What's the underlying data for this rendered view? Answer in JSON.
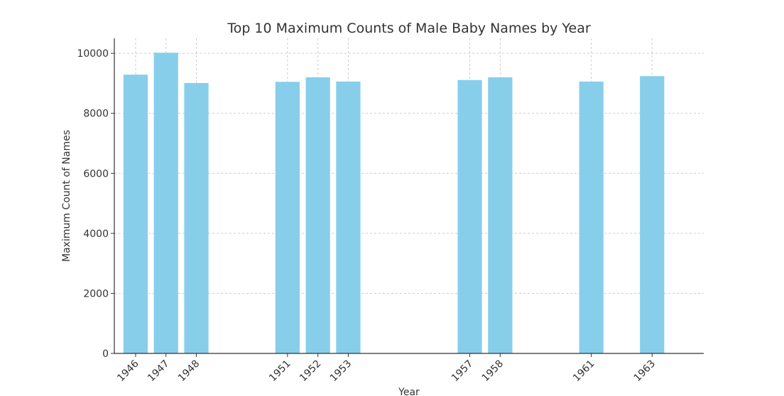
{
  "chart_data": {
    "type": "bar",
    "title": "Top 10 Maximum Counts of Male Baby Names by Year",
    "xlabel": "Year",
    "ylabel": "Maximum Count of Names",
    "x": [
      1946,
      1947,
      1948,
      1951,
      1952,
      1953,
      1957,
      1958,
      1961,
      1963
    ],
    "categories": [
      "1946",
      "1947",
      "1948",
      "1951",
      "1952",
      "1953",
      "1957",
      "1958",
      "1961",
      "1963"
    ],
    "values": [
      9290,
      10020,
      9010,
      9050,
      9200,
      9060,
      9110,
      9200,
      9060,
      9240
    ],
    "xlim": [
      1945.3,
      1964.7
    ],
    "ylim": [
      0,
      10500
    ],
    "yticks": [
      0,
      2000,
      4000,
      6000,
      8000,
      10000
    ],
    "grid": true,
    "bar_color": "#87CEEB"
  }
}
